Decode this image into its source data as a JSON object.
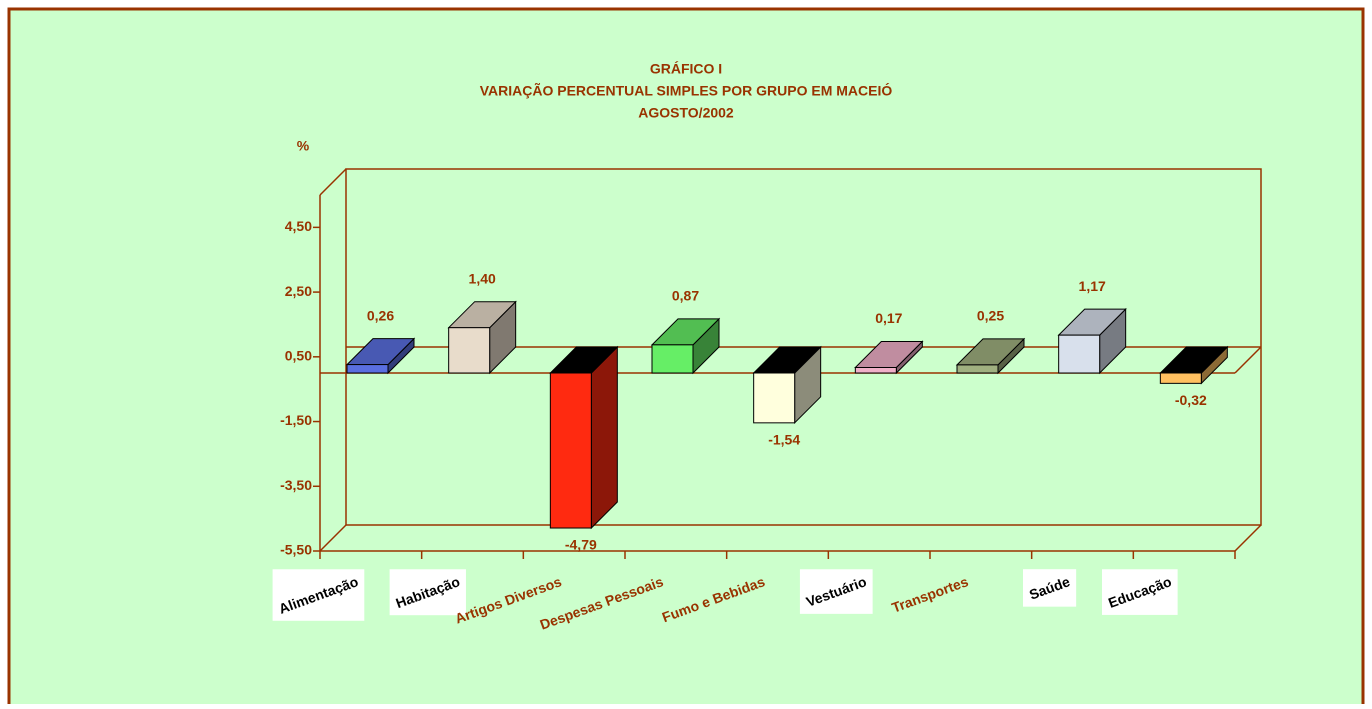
{
  "chart_data": {
    "type": "bar3d",
    "title": [
      "GRÁFICO I",
      "VARIAÇÃO PERCENTUAL SIMPLES POR GRUPO EM MACEIÓ",
      "AGOSTO/2002"
    ],
    "ylabel": "%",
    "categories": [
      "Alimentação",
      "Habitação",
      "Artigos Diversos",
      "Despesas Pessoais",
      "Fumo e Bebidas",
      "Vestuário",
      "Transportes",
      "Saúde",
      "Educação"
    ],
    "values": [
      0.26,
      1.4,
      -4.79,
      0.87,
      -1.54,
      0.17,
      0.25,
      1.17,
      -0.32
    ],
    "value_labels": [
      "0,26",
      "1,40",
      "-4,79",
      "0,87",
      "-1,54",
      "0,17",
      "0,25",
      "1,17",
      "-0,32"
    ],
    "colors": [
      "#5a6fe0",
      "#e8dccb",
      "#ff2a10",
      "#66ee66",
      "#ffffdd",
      "#f0b0c8",
      "#a0b080",
      "#d8e0ec",
      "#ffc060"
    ],
    "ylim": [
      -5.5,
      5.5
    ],
    "yticks": [
      {
        "value": 4.5,
        "label": "4,50"
      },
      {
        "value": 2.5,
        "label": "2,50"
      },
      {
        "value": 0.5,
        "label": "0,50"
      },
      {
        "value": -1.5,
        "label": "-1,50"
      },
      {
        "value": -3.5,
        "label": "-3,50"
      },
      {
        "value": -5.5,
        "label": "-5,50"
      }
    ]
  }
}
